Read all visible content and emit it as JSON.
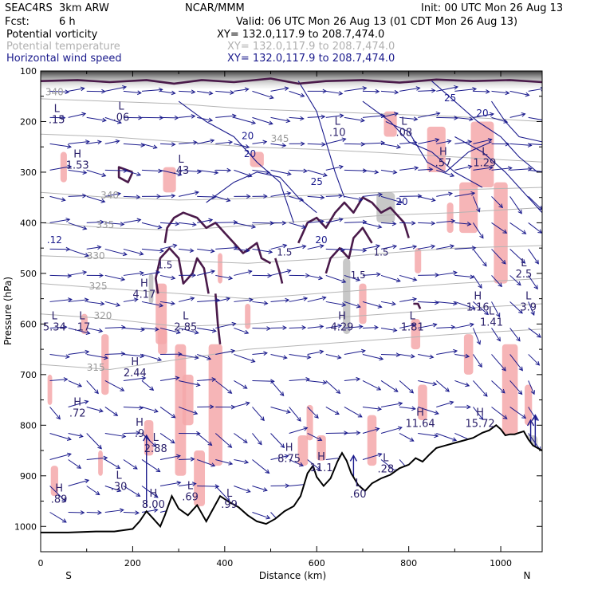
{
  "header": {
    "model": "SEAC4RS  3km ARW",
    "org": "NCAR/MMM",
    "init": "Init: 00 UTC Mon 26 Aug 13",
    "fcst_label": "Fcst:",
    "fcst_value": "6 h",
    "valid": "Valid: 06 UTC Mon 26 Aug 13 (01 CDT Mon 26 Aug 13)"
  },
  "fields": [
    {
      "name": "Potential vorticity",
      "xy": "XY= 132.0,117.9 to 208.7,474.0",
      "color": "#000000"
    },
    {
      "name": "Potential temperature",
      "xy": "XY= 132.0,117.9 to 208.7,474.0",
      "color": "#b0b0b0"
    },
    {
      "name": "Horizontal wind speed",
      "xy": "XY= 132.0,117.9 to 208.7,474.0",
      "color": "#1a1a8c"
    }
  ],
  "chart_data": {
    "type": "cross-section",
    "xlabel": "Distance (km)",
    "ylabel": "Pressure (hPa)",
    "xlim": [
      0,
      1090
    ],
    "ylim": [
      1050,
      100
    ],
    "x_ticks": [
      0,
      200,
      400,
      600,
      800,
      1000
    ],
    "y_ticks": [
      100,
      200,
      300,
      400,
      500,
      600,
      700,
      800,
      900,
      1000
    ],
    "x_end_labels": [
      "S",
      "N"
    ],
    "terrain": {
      "x": [
        0,
        60,
        120,
        160,
        200,
        215,
        230,
        245,
        260,
        270,
        285,
        300,
        320,
        340,
        360,
        375,
        390,
        410,
        430,
        450,
        470,
        490,
        510,
        530,
        550,
        565,
        580,
        592,
        600,
        615,
        630,
        645,
        655,
        665,
        675,
        690,
        705,
        720,
        740,
        760,
        780,
        800,
        815,
        830,
        845,
        860,
        880,
        900,
        920,
        940,
        960,
        975,
        990,
        1000,
        1010,
        1020,
        1030,
        1040,
        1050,
        1060,
        1070,
        1090
      ],
      "p": [
        1012,
        1012,
        1010,
        1010,
        1005,
        990,
        970,
        985,
        1000,
        978,
        940,
        965,
        978,
        958,
        990,
        965,
        940,
        952,
        962,
        978,
        990,
        995,
        985,
        970,
        960,
        940,
        895,
        880,
        902,
        920,
        905,
        872,
        855,
        870,
        895,
        918,
        930,
        915,
        905,
        898,
        885,
        878,
        865,
        872,
        858,
        845,
        840,
        835,
        830,
        825,
        815,
        810,
        800,
        808,
        820,
        818,
        818,
        815,
        812,
        828,
        840,
        850
      ]
    },
    "theta_contours": [
      {
        "label": "340",
        "lx": 30,
        "lp": 148,
        "x": [
          0,
          150,
          300,
          450,
          600,
          750,
          900,
          1090
        ],
        "p": [
          155,
          160,
          165,
          175,
          180,
          185,
          190,
          200
        ]
      },
      {
        "label": "345",
        "lx": 520,
        "lp": 240,
        "x": [
          0,
          150,
          300,
          450,
          600,
          750,
          900,
          1090
        ],
        "p": [
          225,
          230,
          240,
          250,
          255,
          262,
          270,
          280
        ]
      },
      {
        "label": "340",
        "lx": 150,
        "lp": 352,
        "x": [
          0,
          150,
          300,
          450,
          600,
          750,
          900,
          1090
        ],
        "p": [
          340,
          350,
          355,
          352,
          345,
          340,
          335,
          330
        ]
      },
      {
        "label": "335",
        "lx": 140,
        "lp": 410,
        "x": [
          0,
          150,
          300,
          450,
          600,
          750,
          900,
          1090
        ],
        "p": [
          400,
          410,
          415,
          405,
          395,
          385,
          380,
          370
        ]
      },
      {
        "label": "330",
        "lx": 120,
        "lp": 472,
        "x": [
          0,
          150,
          300,
          450,
          600,
          750,
          900,
          1090
        ],
        "p": [
          465,
          470,
          475,
          480,
          472,
          460,
          450,
          445
        ]
      },
      {
        "label": "325",
        "lx": 125,
        "lp": 532,
        "x": [
          0,
          150,
          300,
          450,
          600,
          750,
          900,
          1090
        ],
        "p": [
          520,
          530,
          540,
          550,
          540,
          530,
          520,
          510
        ]
      },
      {
        "label": "320",
        "lx": 135,
        "lp": 590,
        "x": [
          0,
          150,
          300,
          450,
          600,
          750,
          900,
          1090
        ],
        "p": [
          580,
          590,
          605,
          600,
          590,
          580,
          570,
          560
        ]
      },
      {
        "label": "315",
        "lx": 120,
        "lp": 692,
        "x": [
          0,
          150,
          300,
          450,
          600,
          750,
          900,
          1090
        ],
        "p": [
          680,
          690,
          670,
          650,
          640,
          630,
          620,
          610
        ]
      }
    ],
    "pv_extrema": [
      {
        "type": "L",
        "value": ".15",
        "x": 35,
        "p": 200
      },
      {
        "type": "H",
        "value": "1.53",
        "x": 80,
        "p": 290
      },
      {
        "type": "L",
        "value": ".06",
        "x": 175,
        "p": 195
      },
      {
        "type": "L",
        "value": ".43",
        "x": 305,
        "p": 300
      },
      {
        "type": "H",
        "value": "4.17",
        "x": 225,
        "p": 545
      },
      {
        "type": "L",
        "value": "5.34",
        "x": 30,
        "p": 610
      },
      {
        "type": "L",
        "value": ".17",
        "x": 90,
        "p": 610
      },
      {
        "type": "L",
        "value": "2.85",
        "x": 315,
        "p": 610
      },
      {
        "type": "H",
        "value": "2.44",
        "x": 205,
        "p": 700
      },
      {
        "type": "H",
        "value": ".72",
        "x": 80,
        "p": 780
      },
      {
        "type": "H",
        "value": ".9",
        "x": 215,
        "p": 820
      },
      {
        "type": "L",
        "value": "2.88",
        "x": 250,
        "p": 850
      },
      {
        "type": "L",
        "value": ".30",
        "x": 170,
        "p": 925
      },
      {
        "type": "H",
        "value": ".89",
        "x": 40,
        "p": 950
      },
      {
        "type": "H",
        "value": "8.00",
        "x": 245,
        "p": 960
      },
      {
        "type": "L",
        "value": ".69",
        "x": 325,
        "p": 945
      },
      {
        "type": "L",
        "value": ".99",
        "x": 410,
        "p": 960
      },
      {
        "type": "H",
        "value": "8.75",
        "x": 540,
        "p": 870
      },
      {
        "type": "H",
        "value": "11.1",
        "x": 610,
        "p": 888
      },
      {
        "type": "L",
        "value": ".28",
        "x": 750,
        "p": 890
      },
      {
        "type": "L",
        "value": ".60",
        "x": 690,
        "p": 940
      },
      {
        "type": "H",
        "value": "4.29",
        "x": 655,
        "p": 610
      },
      {
        "type": "L",
        "value": "1.81",
        "x": 808,
        "p": 610
      },
      {
        "type": "H",
        "value": "1.16",
        "x": 950,
        "p": 570
      },
      {
        "type": "L",
        "value": "1.41",
        "x": 980,
        "p": 600
      },
      {
        "type": "H",
        "value": "11.64",
        "x": 825,
        "p": 800
      },
      {
        "type": "H",
        "value": "15.72",
        "x": 955,
        "p": 800
      },
      {
        "type": "L",
        "value": "3.9",
        "x": 1060,
        "p": 570
      },
      {
        "type": "L",
        "value": "2.5",
        "x": 1050,
        "p": 505
      },
      {
        "type": "L",
        "value": "1.29",
        "x": 965,
        "p": 285
      },
      {
        "type": "L",
        "value": ".10",
        "x": 645,
        "p": 225
      },
      {
        "type": "L",
        "value": ".08",
        "x": 790,
        "p": 225
      },
      {
        "type": "H",
        "value": ".57",
        "x": 875,
        "p": 285
      }
    ],
    "pv_labels": [
      {
        "value": "1.5",
        "x": 270,
        "p": 490
      },
      {
        "value": "1.5",
        "x": 690,
        "p": 510
      },
      {
        "value": "1.5",
        "x": 740,
        "p": 465
      },
      {
        "value": "1.5",
        "x": 530,
        "p": 465
      }
    ],
    "wind_labels": [
      {
        "value": "20",
        "x": 455,
        "p": 270
      },
      {
        "value": "25",
        "x": 600,
        "p": 325
      },
      {
        "value": "20",
        "x": 610,
        "p": 440
      },
      {
        "value": "25",
        "x": 890,
        "p": 160
      },
      {
        "value": "20",
        "x": 960,
        "p": 190
      },
      {
        "value": "20",
        "x": 450,
        "p": 235
      },
      {
        "value": "20",
        "x": 785,
        "p": 365
      },
      {
        "value": ".12",
        "x": 30,
        "p": 440
      }
    ],
    "grid": false
  }
}
